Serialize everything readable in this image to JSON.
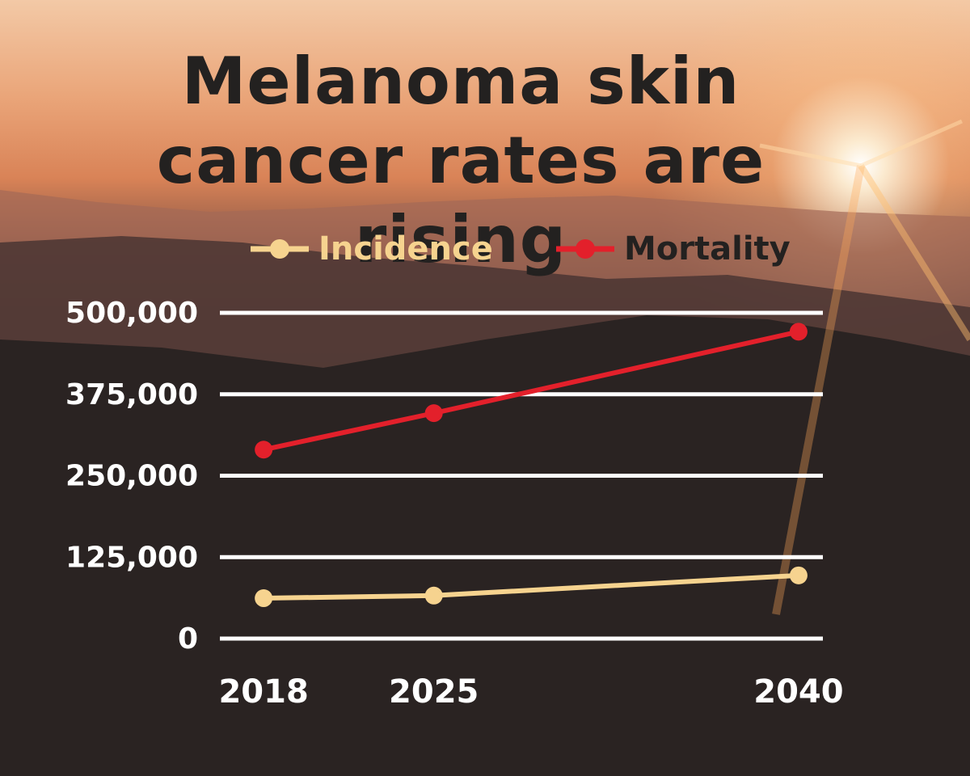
{
  "chart_data": {
    "type": "line",
    "title": "Melanoma skin cancer rates are rising",
    "x": [
      2018,
      2025,
      2040
    ],
    "xlim": [
      2016.2,
      2041
    ],
    "xticks": [
      2018,
      2025,
      2040
    ],
    "ylim": [
      0,
      500000
    ],
    "yticks": [
      0,
      {
        "value": 125000,
        "label": "125,000"
      },
      {
        "value": 250000,
        "label": "250,000"
      },
      {
        "value": 375000,
        "label": "375,000"
      },
      {
        "value": 500000,
        "label": "500,000"
      }
    ],
    "grid": true,
    "legend": "top",
    "series": [
      {
        "name": "Incidence",
        "color": "#f6d38f",
        "values": [
          62000,
          66000,
          97000
        ]
      },
      {
        "name": "Mortality",
        "color": "#e3202b",
        "values": [
          290000,
          346000,
          471000
        ]
      }
    ]
  }
}
